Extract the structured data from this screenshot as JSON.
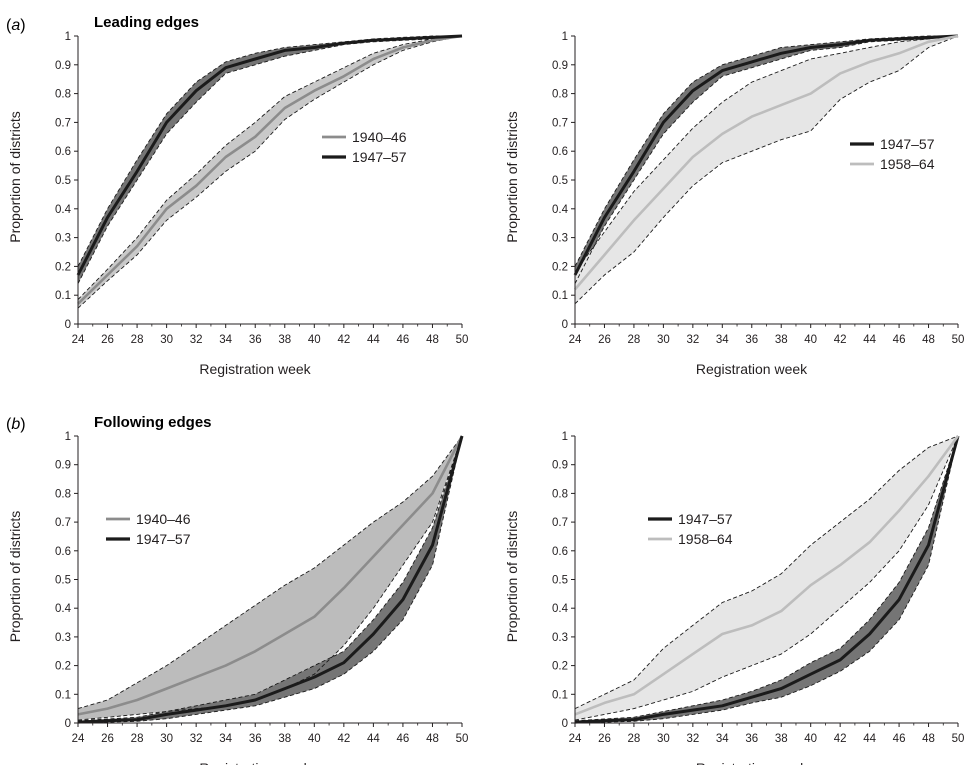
{
  "figure": {
    "panel_a": {
      "letter": "a",
      "title": "Leading edges"
    },
    "panel_b": {
      "letter": "b",
      "title": "Following edges"
    },
    "colors": {
      "1940-46": "#8c8c8c",
      "1947-57": "#1b1b1b",
      "1958-64": "#bdbdbd",
      "band_1940-46": "#c9c9c9",
      "band_1940-46_following": "#bcbcbc",
      "band_1947-57": "#757575",
      "band_1958-64": "#e6e6e6",
      "bound": "#1b1b1b"
    }
  },
  "chart_data": [
    {
      "type": "line",
      "panel": "a",
      "position": "left",
      "xlabel": "Registration week",
      "ylabel": "Proportion of districts",
      "xlim": [
        24,
        50
      ],
      "ylim": [
        0,
        1
      ],
      "xticks": [
        "24",
        "26",
        "28",
        "30",
        "32",
        "34",
        "36",
        "38",
        "40",
        "42",
        "44",
        "46",
        "48",
        "50"
      ],
      "yticks": [
        "0",
        "0.1",
        "0.2",
        "0.3",
        "0.4",
        "0.5",
        "0.6",
        "0.7",
        "0.8",
        "0.9",
        "1"
      ],
      "legend_placement": "center-right",
      "x": [
        24,
        26,
        28,
        30,
        32,
        34,
        36,
        38,
        40,
        42,
        44,
        46,
        48,
        50
      ],
      "series": [
        {
          "name": "1940–46",
          "color_key": "1940-46",
          "band_key": "band_1940-46",
          "values": [
            0.07,
            0.17,
            0.27,
            0.4,
            0.48,
            0.58,
            0.65,
            0.75,
            0.81,
            0.86,
            0.92,
            0.96,
            0.985,
            1.0
          ],
          "lower": [
            0.055,
            0.15,
            0.24,
            0.36,
            0.44,
            0.53,
            0.6,
            0.71,
            0.78,
            0.84,
            0.9,
            0.95,
            0.98,
            1.0
          ],
          "upper": [
            0.085,
            0.19,
            0.3,
            0.43,
            0.52,
            0.62,
            0.7,
            0.79,
            0.84,
            0.89,
            0.94,
            0.97,
            0.99,
            1.0
          ]
        },
        {
          "name": "1947–57",
          "color_key": "1947-57",
          "band_key": "band_1947-57",
          "values": [
            0.17,
            0.37,
            0.53,
            0.7,
            0.81,
            0.89,
            0.92,
            0.95,
            0.96,
            0.975,
            0.985,
            0.99,
            0.995,
            1.0
          ],
          "lower": [
            0.14,
            0.34,
            0.5,
            0.66,
            0.77,
            0.87,
            0.9,
            0.93,
            0.95,
            0.97,
            0.98,
            0.985,
            0.99,
            1.0
          ],
          "upper": [
            0.2,
            0.4,
            0.57,
            0.73,
            0.84,
            0.91,
            0.94,
            0.96,
            0.97,
            0.98,
            0.99,
            0.995,
            1.0,
            1.0
          ]
        }
      ]
    },
    {
      "type": "line",
      "panel": "a",
      "position": "right",
      "xlabel": "Registration week",
      "ylabel": "Proportion of districts",
      "xlim": [
        24,
        50
      ],
      "ylim": [
        0,
        1
      ],
      "xticks": [
        "24",
        "26",
        "28",
        "30",
        "32",
        "34",
        "36",
        "38",
        "40",
        "42",
        "44",
        "46",
        "48",
        "50"
      ],
      "yticks": [
        "0",
        "0.1",
        "0.2",
        "0.3",
        "0.4",
        "0.5",
        "0.6",
        "0.7",
        "0.8",
        "0.9",
        "1"
      ],
      "legend_placement": "center-right",
      "x": [
        24,
        26,
        28,
        30,
        32,
        34,
        36,
        38,
        40,
        42,
        44,
        46,
        48,
        50
      ],
      "series": [
        {
          "name": "1947–57",
          "color_key": "1947-57",
          "band_key": "band_1947-57",
          "values": [
            0.17,
            0.37,
            0.53,
            0.7,
            0.81,
            0.88,
            0.91,
            0.94,
            0.96,
            0.97,
            0.985,
            0.99,
            0.995,
            1.0
          ],
          "lower": [
            0.14,
            0.34,
            0.5,
            0.66,
            0.77,
            0.86,
            0.89,
            0.92,
            0.95,
            0.96,
            0.98,
            0.985,
            0.99,
            1.0
          ],
          "upper": [
            0.2,
            0.4,
            0.57,
            0.73,
            0.84,
            0.9,
            0.93,
            0.96,
            0.97,
            0.98,
            0.99,
            0.995,
            1.0,
            1.0
          ]
        },
        {
          "name": "1958–64",
          "color_key": "1958-64",
          "band_key": "band_1958-64",
          "values": [
            0.12,
            0.24,
            0.36,
            0.47,
            0.58,
            0.66,
            0.72,
            0.76,
            0.8,
            0.87,
            0.91,
            0.94,
            0.98,
            1.0
          ],
          "lower": [
            0.07,
            0.17,
            0.25,
            0.37,
            0.48,
            0.56,
            0.6,
            0.64,
            0.67,
            0.78,
            0.84,
            0.88,
            0.96,
            1.0
          ],
          "upper": [
            0.18,
            0.32,
            0.46,
            0.57,
            0.68,
            0.77,
            0.84,
            0.88,
            0.92,
            0.94,
            0.96,
            0.98,
            0.99,
            1.0
          ]
        }
      ]
    },
    {
      "type": "line",
      "panel": "b",
      "position": "left",
      "xlabel": "Registration week",
      "ylabel": "Proportion of districts",
      "xlim": [
        24,
        50
      ],
      "ylim": [
        0,
        1
      ],
      "xticks": [
        "24",
        "26",
        "28",
        "30",
        "32",
        "34",
        "36",
        "38",
        "40",
        "42",
        "44",
        "46",
        "48",
        "50"
      ],
      "yticks": [
        "0",
        "0.1",
        "0.2",
        "0.3",
        "0.4",
        "0.5",
        "0.6",
        "0.7",
        "0.8",
        "0.9",
        "1"
      ],
      "legend_placement": "upper-left",
      "x": [
        24,
        26,
        28,
        30,
        32,
        34,
        36,
        38,
        40,
        42,
        44,
        46,
        48,
        50
      ],
      "series": [
        {
          "name": "1940–46",
          "color_key": "1940-46",
          "band_key": "band_1940-46_following",
          "values": [
            0.03,
            0.05,
            0.08,
            0.12,
            0.16,
            0.2,
            0.25,
            0.31,
            0.37,
            0.47,
            0.58,
            0.69,
            0.8,
            1.0
          ],
          "lower": [
            0.01,
            0.02,
            0.03,
            0.04,
            0.05,
            0.06,
            0.08,
            0.12,
            0.17,
            0.27,
            0.4,
            0.55,
            0.7,
            1.0
          ],
          "upper": [
            0.05,
            0.08,
            0.14,
            0.2,
            0.27,
            0.34,
            0.41,
            0.48,
            0.54,
            0.62,
            0.7,
            0.77,
            0.86,
            1.0
          ]
        },
        {
          "name": "1947–57",
          "color_key": "1947-57",
          "band_key": "band_1947-57",
          "values": [
            0.003,
            0.008,
            0.012,
            0.03,
            0.045,
            0.06,
            0.08,
            0.12,
            0.16,
            0.21,
            0.31,
            0.43,
            0.62,
            1.0
          ],
          "lower": [
            0.0,
            0.003,
            0.006,
            0.015,
            0.03,
            0.045,
            0.06,
            0.09,
            0.12,
            0.17,
            0.25,
            0.36,
            0.55,
            1.0
          ],
          "upper": [
            0.008,
            0.014,
            0.02,
            0.04,
            0.06,
            0.08,
            0.1,
            0.15,
            0.2,
            0.25,
            0.36,
            0.49,
            0.68,
            1.0
          ]
        }
      ]
    },
    {
      "type": "line",
      "panel": "b",
      "position": "right",
      "xlabel": "Registration week",
      "ylabel": "Proportion of districts",
      "xlim": [
        24,
        50
      ],
      "ylim": [
        0,
        1
      ],
      "xticks": [
        "24",
        "26",
        "28",
        "30",
        "32",
        "34",
        "36",
        "38",
        "40",
        "42",
        "44",
        "46",
        "48",
        "50"
      ],
      "yticks": [
        "0",
        "0.1",
        "0.2",
        "0.3",
        "0.4",
        "0.5",
        "0.6",
        "0.7",
        "0.8",
        "0.9",
        "1"
      ],
      "legend_placement": "upper-left",
      "x": [
        24,
        26,
        28,
        30,
        32,
        34,
        36,
        38,
        40,
        42,
        44,
        46,
        48,
        50
      ],
      "series": [
        {
          "name": "1947–57",
          "color_key": "1947-57",
          "band_key": "band_1947-57",
          "values": [
            0.003,
            0.008,
            0.012,
            0.03,
            0.045,
            0.06,
            0.09,
            0.12,
            0.17,
            0.22,
            0.31,
            0.43,
            0.62,
            1.0
          ],
          "lower": [
            0.0,
            0.003,
            0.006,
            0.015,
            0.03,
            0.045,
            0.07,
            0.09,
            0.13,
            0.18,
            0.25,
            0.36,
            0.55,
            1.0
          ],
          "upper": [
            0.008,
            0.014,
            0.02,
            0.04,
            0.06,
            0.08,
            0.11,
            0.15,
            0.21,
            0.26,
            0.36,
            0.49,
            0.68,
            1.0
          ]
        },
        {
          "name": "1958–64",
          "color_key": "1958-64",
          "band_key": "band_1958-64",
          "values": [
            0.03,
            0.07,
            0.1,
            0.17,
            0.24,
            0.31,
            0.34,
            0.39,
            0.48,
            0.55,
            0.63,
            0.74,
            0.86,
            1.0
          ],
          "lower": [
            0.01,
            0.03,
            0.05,
            0.08,
            0.11,
            0.16,
            0.2,
            0.24,
            0.31,
            0.4,
            0.49,
            0.6,
            0.76,
            1.0
          ],
          "upper": [
            0.05,
            0.1,
            0.15,
            0.26,
            0.34,
            0.42,
            0.46,
            0.52,
            0.62,
            0.7,
            0.78,
            0.88,
            0.96,
            1.0
          ]
        }
      ]
    }
  ]
}
